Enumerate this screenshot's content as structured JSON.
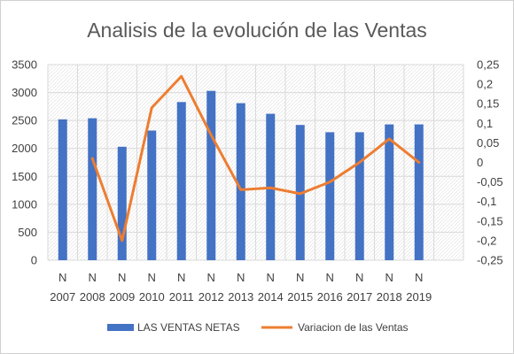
{
  "chart_data": {
    "type": "bar",
    "title": "Analisis de la evolución de las Ventas",
    "categories": [
      "N 2007",
      "N 2008",
      "N 2009",
      "N 2010",
      "N 2011",
      "N 2012",
      "N 2013",
      "N 2014",
      "N 2015",
      "N 2016",
      "N 2017",
      "N 2018",
      "N 2019"
    ],
    "category_lines": [
      [
        "N",
        "2007"
      ],
      [
        "N",
        "2008"
      ],
      [
        "N",
        "2009"
      ],
      [
        "N",
        "2010"
      ],
      [
        "N",
        "2011"
      ],
      [
        "N",
        "2012"
      ],
      [
        "N",
        "2013"
      ],
      [
        "N",
        "2014"
      ],
      [
        "N",
        "2015"
      ],
      [
        "N",
        "2016"
      ],
      [
        "N",
        "2017"
      ],
      [
        "N",
        "2018"
      ],
      [
        "N",
        "2019"
      ]
    ],
    "extra_empty_slots": 1,
    "series": [
      {
        "name": "LAS VENTAS NETAS",
        "type": "bar",
        "axis": "left",
        "color": "#4472C4",
        "values": [
          2520,
          2540,
          2030,
          2320,
          2830,
          3030,
          2810,
          2620,
          2420,
          2290,
          2290,
          2430,
          2430
        ]
      },
      {
        "name": "Variacion de las Ventas",
        "type": "line",
        "axis": "right",
        "color": "#ED7D31",
        "values": [
          null,
          0.01,
          -0.2,
          0.14,
          0.22,
          0.07,
          -0.07,
          -0.065,
          -0.08,
          -0.05,
          0.0,
          0.06,
          0.0
        ]
      }
    ],
    "y_left": {
      "min": 0,
      "max": 3500,
      "ticks": [
        0,
        500,
        1000,
        1500,
        2000,
        2500,
        3000,
        3500
      ],
      "tick_labels": [
        "0",
        "500",
        "1000",
        "1500",
        "2000",
        "2500",
        "3000",
        "3500"
      ]
    },
    "y_right": {
      "min": -0.25,
      "max": 0.25,
      "ticks": [
        -0.25,
        -0.2,
        -0.15,
        -0.1,
        -0.05,
        0,
        0.05,
        0.1,
        0.15,
        0.2,
        0.25
      ],
      "tick_labels": [
        "-0,25",
        "-0,2",
        "-0,15",
        "-0,1",
        "-0,05",
        "0",
        "0,05",
        "0,1",
        "0,15",
        "0,2",
        "0,25"
      ]
    },
    "grid": true,
    "legend_position": "bottom"
  }
}
